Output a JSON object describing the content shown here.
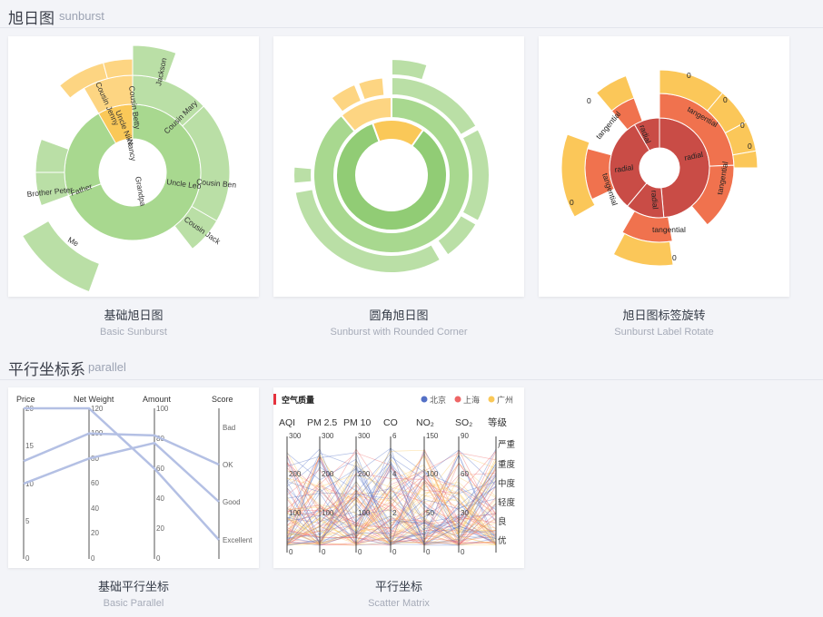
{
  "sections": [
    {
      "title": "旭日图",
      "sub": "sunburst"
    },
    {
      "title": "平行坐标系",
      "sub": "parallel"
    }
  ],
  "cards": [
    {
      "cn": "基础旭日图",
      "en": "Basic Sunburst"
    },
    {
      "cn": "圆角旭日图",
      "en": "Sunburst with Rounded Corner"
    },
    {
      "cn": "旭日图标签旋转",
      "en": "Sunburst Label Rotate"
    },
    {
      "cn": "基础平行坐标",
      "en": "Basic Parallel"
    },
    {
      "cn": "平行坐标",
      "en": "Scatter Matrix"
    }
  ],
  "basic_sunburst": {
    "labels": [
      "Jackson",
      "Cousin Mary",
      "Cousin Ben",
      "Cousin Jack",
      "Cousin Betty",
      "Cousin Jenny",
      "Uncle Nike",
      "Nancy",
      "Grandpa",
      "Uncle Leo",
      "Father",
      "Brother Peter",
      "Me"
    ]
  },
  "rotate_sunburst": {
    "zero": "0",
    "radial": "radial",
    "tangential": "tangential"
  },
  "basic_parallel": {
    "axes": [
      "Price",
      "Net Weight",
      "Amount",
      "Score"
    ],
    "price_ticks": [
      "0",
      "5",
      "10",
      "15",
      "20"
    ],
    "weight_ticks": [
      "0",
      "20",
      "40",
      "60",
      "80",
      "100",
      "120"
    ],
    "amount_ticks": [
      "0",
      "20",
      "40",
      "60",
      "80",
      "100"
    ],
    "score_ticks": [
      "Excellent",
      "Good",
      "OK",
      "Bad"
    ],
    "series": [
      [
        12.99,
        100,
        82,
        2
      ],
      [
        9.99,
        80,
        77,
        1
      ],
      [
        20,
        120,
        60,
        0
      ]
    ]
  },
  "scatter_matrix": {
    "title": "空气质量",
    "legend": [
      {
        "name": "北京",
        "color": "#5470c6"
      },
      {
        "name": "上海",
        "color": "#ee6666"
      },
      {
        "name": "广州",
        "color": "#fac858"
      }
    ],
    "axes": [
      "AQI",
      "PM 2.5",
      "PM 10",
      "CO",
      "NO₂",
      "SO₂",
      "等级"
    ],
    "ticks300": [
      "0",
      "100",
      "200",
      "300"
    ],
    "co_ticks": [
      "0",
      "2",
      "4",
      "6"
    ],
    "no2_ticks": [
      "0",
      "50",
      "100",
      "150"
    ],
    "so2_ticks": [
      "0",
      "30",
      "60",
      "90"
    ],
    "grades": [
      "优",
      "良",
      "轻度",
      "中度",
      "重度",
      "严重"
    ]
  },
  "colors": {
    "green1": "#91cc75",
    "green2": "#a8d88f",
    "green3": "#badfa6",
    "yellow": "#fac858",
    "yellow2": "#fdd582",
    "red": "#c94c46",
    "orange": "#f0724e",
    "gold": "#fbc759",
    "parallel_line": "#b4c0e4"
  }
}
